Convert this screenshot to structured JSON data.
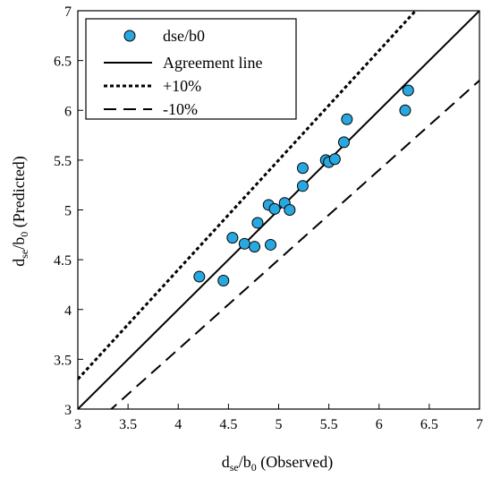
{
  "chart_data": {
    "type": "scatter",
    "xlim": [
      3,
      7
    ],
    "ylim": [
      3,
      7
    ],
    "x_ticks": [
      "3",
      "3.5",
      "4",
      "4.5",
      "5",
      "5.5",
      "6",
      "6.5",
      "7"
    ],
    "y_ticks": [
      "3",
      "3.5",
      "4",
      "4.5",
      "5",
      "5.5",
      "6",
      "6.5",
      "7"
    ],
    "xlabel": {
      "base": "d",
      "sub1": "se",
      "mid": "/b",
      "sub2": "0",
      "tail": " (Observed)"
    },
    "ylabel": {
      "base": "d",
      "sub1": "se",
      "mid": "/b",
      "sub2": "0",
      "tail": " (Predicted)"
    },
    "grid": false,
    "legend_placement": "top-left",
    "marker_color": "#29a8e0",
    "series": [
      {
        "name": "dse/b0",
        "kind": "points",
        "points": [
          {
            "x": 4.21,
            "y": 4.33
          },
          {
            "x": 4.45,
            "y": 4.29
          },
          {
            "x": 4.54,
            "y": 4.72
          },
          {
            "x": 4.66,
            "y": 4.66
          },
          {
            "x": 4.76,
            "y": 4.63
          },
          {
            "x": 4.79,
            "y": 4.87
          },
          {
            "x": 4.9,
            "y": 5.05
          },
          {
            "x": 4.92,
            "y": 4.65
          },
          {
            "x": 4.96,
            "y": 5.01
          },
          {
            "x": 5.06,
            "y": 5.07
          },
          {
            "x": 5.11,
            "y": 5.0
          },
          {
            "x": 5.24,
            "y": 5.24
          },
          {
            "x": 5.24,
            "y": 5.42
          },
          {
            "x": 5.47,
            "y": 5.5
          },
          {
            "x": 5.5,
            "y": 5.48
          },
          {
            "x": 5.56,
            "y": 5.51
          },
          {
            "x": 5.65,
            "y": 5.68
          },
          {
            "x": 5.68,
            "y": 5.91
          },
          {
            "x": 6.26,
            "y": 6.0
          },
          {
            "x": 6.29,
            "y": 6.2
          }
        ]
      },
      {
        "name": "Agreement line",
        "kind": "line",
        "factor": 1.0,
        "dash": "solid"
      },
      {
        "name": "+10%",
        "kind": "line",
        "factor": 1.1,
        "dash": "short-dash"
      },
      {
        "name": "-10%",
        "kind": "line",
        "factor": 0.9,
        "dash": "long-dash"
      }
    ]
  }
}
